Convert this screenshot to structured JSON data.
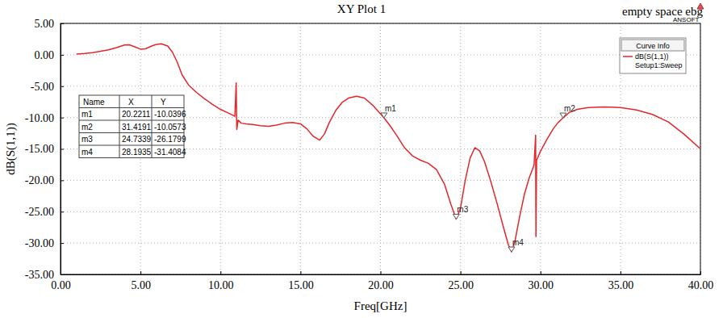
{
  "chart_data": {
    "type": "line",
    "title": "XY Plot 1",
    "x_label": "Freq[GHz]",
    "y_label": "dB(S(1,1))",
    "annotations": [
      "empty space ebg",
      "ANSOFT"
    ],
    "legend_title": "Curve Info",
    "legend": "top-right",
    "grid": true,
    "xlim": [
      0,
      40
    ],
    "ylim": [
      -35,
      5
    ],
    "xticks": [
      {
        "value": 0,
        "label": "0.00"
      },
      {
        "value": 5,
        "label": "5.00"
      },
      {
        "value": 10,
        "label": "10.00"
      },
      {
        "value": 15,
        "label": "15.00"
      },
      {
        "value": 20,
        "label": "20.00"
      },
      {
        "value": 25,
        "label": "25.00"
      },
      {
        "value": 30,
        "label": "30.00"
      },
      {
        "value": 35,
        "label": "35.00"
      },
      {
        "value": 40,
        "label": "40.00"
      }
    ],
    "yticks": [
      {
        "value": -35,
        "label": "-35.00"
      },
      {
        "value": -30,
        "label": "-30.00"
      },
      {
        "value": -25,
        "label": "-25.00"
      },
      {
        "value": -20,
        "label": "-20.00"
      },
      {
        "value": -15,
        "label": "-15.00"
      },
      {
        "value": -10,
        "label": "-10.00"
      },
      {
        "value": -5,
        "label": "-5.00"
      },
      {
        "value": 0,
        "label": "0.00"
      },
      {
        "value": 5,
        "label": "5.00"
      }
    ],
    "x": [
      1,
      1.5,
      2,
      2.5,
      3,
      3.5,
      4,
      4.3,
      4.7,
      5,
      5.3,
      5.7,
      6,
      6.3,
      6.7,
      7,
      7.3,
      7.6,
      8,
      8.5,
      9,
      9.5,
      10,
      10.5,
      10.9,
      10.98,
      11.02,
      11.1,
      11.3,
      11.6,
      12,
      12.5,
      13,
      13.5,
      14,
      14.5,
      15,
      15.4,
      15.8,
      16.2,
      16.5,
      16.8,
      17.2,
      17.6,
      18,
      18.5,
      19,
      19.5,
      20,
      20.2211,
      20.6,
      21,
      21.5,
      22,
      22.5,
      23,
      23.5,
      24,
      24.4,
      24.7339,
      25,
      25.3,
      25.6,
      25.9,
      26.2,
      26.5,
      26.9,
      27.3,
      27.7,
      28,
      28.1935,
      28.4,
      28.7,
      29,
      29.3,
      29.6,
      29.7,
      29.72,
      29.76,
      30,
      30.4,
      30.8,
      31.1,
      31.4191,
      31.8,
      32.3,
      33,
      34,
      35,
      36,
      37,
      38,
      39,
      40
    ],
    "series": [
      {
        "name": "dB(S(1,1))",
        "setup": "Setup1:Sweep",
        "color": "#e4272b",
        "values": [
          0.1,
          0.2,
          0.35,
          0.55,
          0.8,
          1.15,
          1.55,
          1.6,
          1.2,
          0.9,
          0.95,
          1.4,
          1.65,
          1.75,
          1.4,
          0.4,
          -1.2,
          -3.2,
          -4.8,
          -6.0,
          -7.0,
          -7.9,
          -8.7,
          -9.3,
          -9.8,
          -4.5,
          -11.9,
          -10.4,
          -10.9,
          -11.0,
          -11.1,
          -11.3,
          -11.4,
          -11.2,
          -10.9,
          -10.8,
          -11.0,
          -11.8,
          -13.0,
          -13.6,
          -12.6,
          -10.8,
          -8.9,
          -7.6,
          -6.9,
          -6.6,
          -6.9,
          -8.0,
          -9.4,
          -10.0396,
          -11.3,
          -12.8,
          -14.8,
          -16.1,
          -16.8,
          -17.3,
          -18.3,
          -20.6,
          -23.8,
          -26.1799,
          -24.5,
          -20,
          -16.5,
          -14.8,
          -15.3,
          -17,
          -20.2,
          -23.8,
          -27.6,
          -30.3,
          -31.4084,
          -29.8,
          -25.8,
          -22.2,
          -19.6,
          -17.6,
          -12.8,
          -29.0,
          -16.8,
          -15.4,
          -13.5,
          -11.8,
          -10.8,
          -10.0573,
          -9.2,
          -8.7,
          -8.4,
          -8.3,
          -8.4,
          -8.8,
          -9.5,
          -10.7,
          -12.7,
          -15.0
        ]
      }
    ],
    "markers": {
      "columns": [
        "Name",
        "X",
        "Y"
      ],
      "rows": [
        [
          "m1",
          20.2211,
          -10.0396
        ],
        [
          "m2",
          31.4191,
          -10.0573
        ],
        [
          "m3",
          24.7339,
          -26.1799
        ],
        [
          "m4",
          28.1935,
          -31.4084
        ]
      ]
    }
  }
}
